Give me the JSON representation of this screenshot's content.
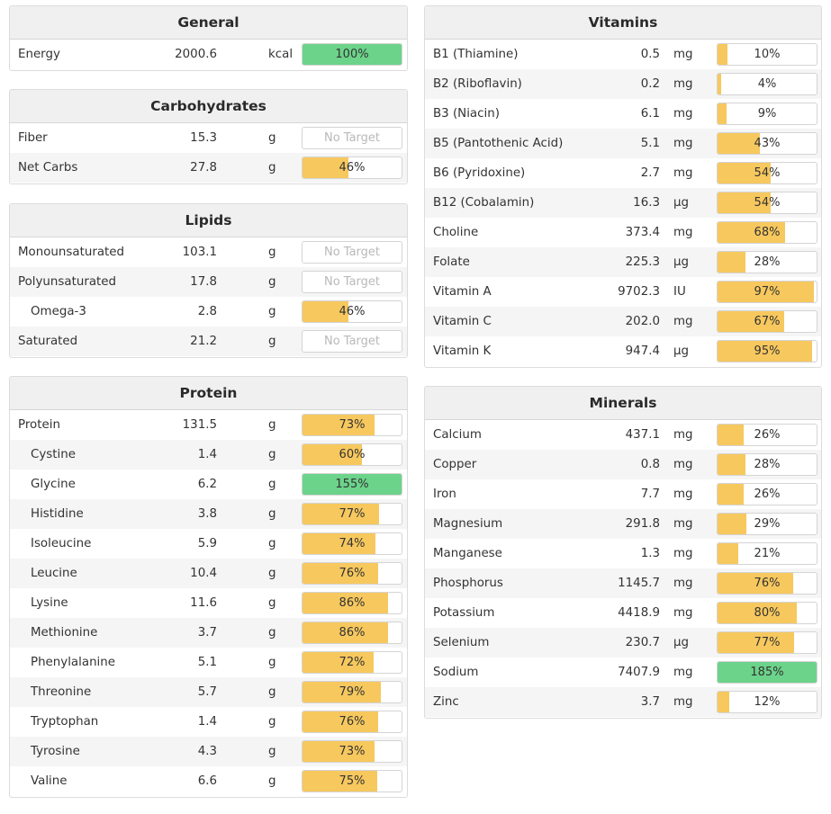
{
  "colors": {
    "on_target": "#6cd38a",
    "below_target": "#f7c85e",
    "header_bg": "#f0f0f0",
    "stripe": "#f5f5f5"
  },
  "left_panels": [
    {
      "key": "general",
      "title": "General",
      "rows": [
        {
          "name": "Energy",
          "amount": "2000.6",
          "unit": "kcal",
          "pct": 100,
          "pct_label": "100%"
        }
      ]
    },
    {
      "key": "carbohydrates",
      "title": "Carbohydrates",
      "rows": [
        {
          "name": "Fiber",
          "amount": "15.3",
          "unit": "g",
          "pct": null,
          "pct_label": "No Target"
        },
        {
          "name": "Net Carbs",
          "amount": "27.8",
          "unit": "g",
          "pct": 46,
          "pct_label": "46%"
        }
      ]
    },
    {
      "key": "lipids",
      "title": "Lipids",
      "rows": [
        {
          "name": "Monounsaturated",
          "amount": "103.1",
          "unit": "g",
          "pct": null,
          "pct_label": "No Target"
        },
        {
          "name": "Polyunsaturated",
          "amount": "17.8",
          "unit": "g",
          "pct": null,
          "pct_label": "No Target"
        },
        {
          "name": "Omega-3",
          "amount": "2.8",
          "unit": "g",
          "pct": 46,
          "pct_label": "46%",
          "sub": true
        },
        {
          "name": "Saturated",
          "amount": "21.2",
          "unit": "g",
          "pct": null,
          "pct_label": "No Target"
        }
      ]
    },
    {
      "key": "protein",
      "title": "Protein",
      "rows": [
        {
          "name": "Protein",
          "amount": "131.5",
          "unit": "g",
          "pct": 73,
          "pct_label": "73%"
        },
        {
          "name": "Cystine",
          "amount": "1.4",
          "unit": "g",
          "pct": 60,
          "pct_label": "60%",
          "sub": true
        },
        {
          "name": "Glycine",
          "amount": "6.2",
          "unit": "g",
          "pct": 155,
          "pct_label": "155%",
          "sub": true
        },
        {
          "name": "Histidine",
          "amount": "3.8",
          "unit": "g",
          "pct": 77,
          "pct_label": "77%",
          "sub": true
        },
        {
          "name": "Isoleucine",
          "amount": "5.9",
          "unit": "g",
          "pct": 74,
          "pct_label": "74%",
          "sub": true
        },
        {
          "name": "Leucine",
          "amount": "10.4",
          "unit": "g",
          "pct": 76,
          "pct_label": "76%",
          "sub": true
        },
        {
          "name": "Lysine",
          "amount": "11.6",
          "unit": "g",
          "pct": 86,
          "pct_label": "86%",
          "sub": true
        },
        {
          "name": "Methionine",
          "amount": "3.7",
          "unit": "g",
          "pct": 86,
          "pct_label": "86%",
          "sub": true
        },
        {
          "name": "Phenylalanine",
          "amount": "5.1",
          "unit": "g",
          "pct": 72,
          "pct_label": "72%",
          "sub": true
        },
        {
          "name": "Threonine",
          "amount": "5.7",
          "unit": "g",
          "pct": 79,
          "pct_label": "79%",
          "sub": true
        },
        {
          "name": "Tryptophan",
          "amount": "1.4",
          "unit": "g",
          "pct": 76,
          "pct_label": "76%",
          "sub": true
        },
        {
          "name": "Tyrosine",
          "amount": "4.3",
          "unit": "g",
          "pct": 73,
          "pct_label": "73%",
          "sub": true
        },
        {
          "name": "Valine",
          "amount": "6.6",
          "unit": "g",
          "pct": 75,
          "pct_label": "75%",
          "sub": true
        }
      ]
    }
  ],
  "right_panels": [
    {
      "key": "vitamins",
      "title": "Vitamins",
      "rows": [
        {
          "name": "B1 (Thiamine)",
          "amount": "0.5",
          "unit": "mg",
          "pct": 10,
          "pct_label": "10%"
        },
        {
          "name": "B2 (Riboflavin)",
          "amount": "0.2",
          "unit": "mg",
          "pct": 4,
          "pct_label": "4%"
        },
        {
          "name": "B3 (Niacin)",
          "amount": "6.1",
          "unit": "mg",
          "pct": 9,
          "pct_label": "9%"
        },
        {
          "name": "B5 (Pantothenic Acid)",
          "amount": "5.1",
          "unit": "mg",
          "pct": 43,
          "pct_label": "43%"
        },
        {
          "name": "B6 (Pyridoxine)",
          "amount": "2.7",
          "unit": "mg",
          "pct": 54,
          "pct_label": "54%"
        },
        {
          "name": "B12 (Cobalamin)",
          "amount": "16.3",
          "unit": "µg",
          "pct": 54,
          "pct_label": "54%"
        },
        {
          "name": "Choline",
          "amount": "373.4",
          "unit": "mg",
          "pct": 68,
          "pct_label": "68%"
        },
        {
          "name": "Folate",
          "amount": "225.3",
          "unit": "µg",
          "pct": 28,
          "pct_label": "28%"
        },
        {
          "name": "Vitamin A",
          "amount": "9702.3",
          "unit": "IU",
          "pct": 97,
          "pct_label": "97%"
        },
        {
          "name": "Vitamin C",
          "amount": "202.0",
          "unit": "mg",
          "pct": 67,
          "pct_label": "67%"
        },
        {
          "name": "Vitamin K",
          "amount": "947.4",
          "unit": "µg",
          "pct": 95,
          "pct_label": "95%"
        }
      ]
    },
    {
      "key": "minerals",
      "title": "Minerals",
      "rows": [
        {
          "name": "Calcium",
          "amount": "437.1",
          "unit": "mg",
          "pct": 26,
          "pct_label": "26%"
        },
        {
          "name": "Copper",
          "amount": "0.8",
          "unit": "mg",
          "pct": 28,
          "pct_label": "28%"
        },
        {
          "name": "Iron",
          "amount": "7.7",
          "unit": "mg",
          "pct": 26,
          "pct_label": "26%"
        },
        {
          "name": "Magnesium",
          "amount": "291.8",
          "unit": "mg",
          "pct": 29,
          "pct_label": "29%"
        },
        {
          "name": "Manganese",
          "amount": "1.3",
          "unit": "mg",
          "pct": 21,
          "pct_label": "21%"
        },
        {
          "name": "Phosphorus",
          "amount": "1145.7",
          "unit": "mg",
          "pct": 76,
          "pct_label": "76%"
        },
        {
          "name": "Potassium",
          "amount": "4418.9",
          "unit": "mg",
          "pct": 80,
          "pct_label": "80%"
        },
        {
          "name": "Selenium",
          "amount": "230.7",
          "unit": "µg",
          "pct": 77,
          "pct_label": "77%"
        },
        {
          "name": "Sodium",
          "amount": "7407.9",
          "unit": "mg",
          "pct": 185,
          "pct_label": "185%"
        },
        {
          "name": "Zinc",
          "amount": "3.7",
          "unit": "mg",
          "pct": 12,
          "pct_label": "12%"
        }
      ]
    }
  ]
}
